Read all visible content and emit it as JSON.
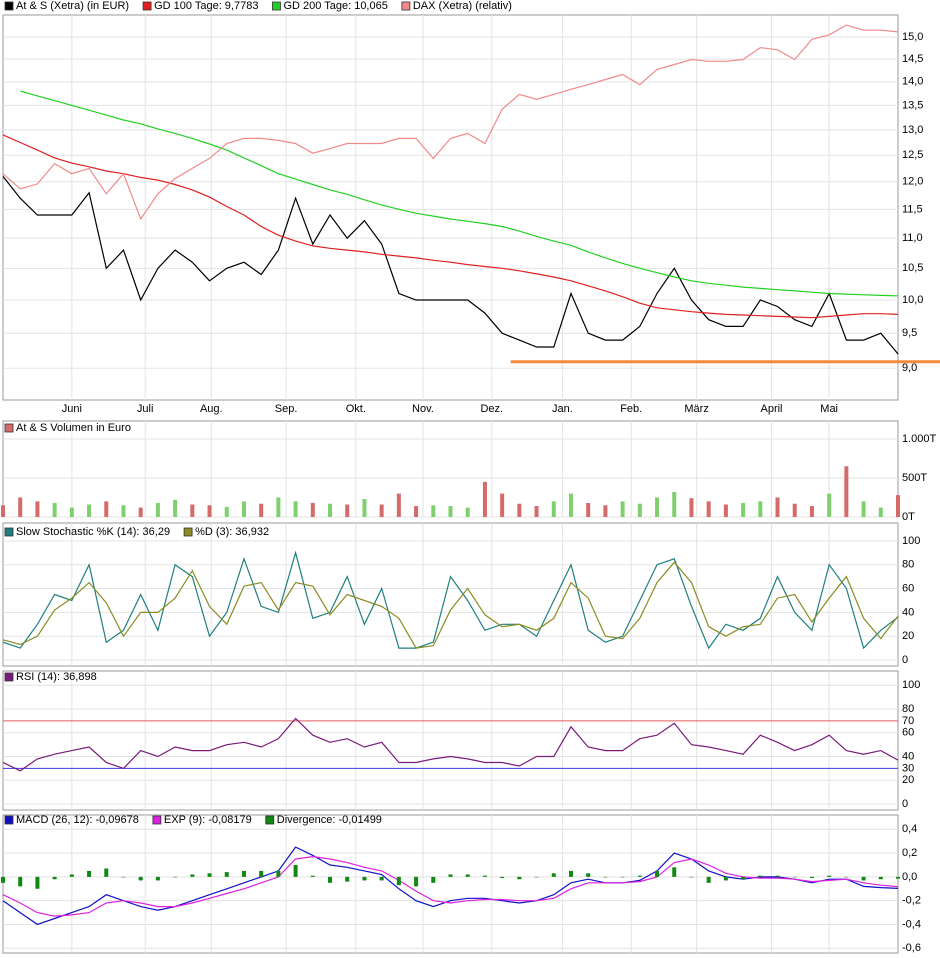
{
  "chart_data": [
    {
      "type": "line",
      "log": true,
      "grid": true,
      "xlim": [
        0,
        52
      ],
      "xticks": [
        {
          "value": 4.0,
          "label": "Juni"
        },
        {
          "value": 8.26,
          "label": "Juli"
        },
        {
          "value": 12.1,
          "label": "Aug."
        },
        {
          "value": 16.45,
          "label": "Sep."
        },
        {
          "value": 20.5,
          "label": "Okt."
        },
        {
          "value": 24.4,
          "label": "Nov."
        },
        {
          "value": 28.4,
          "label": "Dez."
        },
        {
          "value": 32.5,
          "label": "Jan."
        },
        {
          "value": 36.5,
          "label": "Feb."
        },
        {
          "value": 40.3,
          "label": "März"
        },
        {
          "value": 44.65,
          "label": "April"
        },
        {
          "value": 48.0,
          "label": "Mai"
        }
      ],
      "ylim": [
        8.57,
        15.52
      ],
      "yticks": [
        {
          "value": 9,
          "label": "9,0"
        },
        {
          "value": 9.5,
          "label": "9,5"
        },
        {
          "value": 10,
          "label": "10,0"
        },
        {
          "value": 10.5,
          "label": "10,5"
        },
        {
          "value": 11,
          "label": "11,0"
        },
        {
          "value": 11.5,
          "label": "11,5"
        },
        {
          "value": 12,
          "label": "12,0"
        },
        {
          "value": 12.5,
          "label": "12,5"
        },
        {
          "value": 13,
          "label": "13,0"
        },
        {
          "value": 13.5,
          "label": "13,5"
        },
        {
          "value": 14,
          "label": "14,0"
        },
        {
          "value": 14.5,
          "label": "14,5"
        },
        {
          "value": 15,
          "label": "15,0"
        }
      ],
      "hlines": [
        {
          "value": 9.09,
          "color": "#f28a3c",
          "x_from": 29.5
        }
      ],
      "series": [
        {
          "name": "At & S (Xetra) (in EUR)",
          "color": "#000000",
          "values": [
            12.1,
            11.7,
            11.4,
            11.4,
            11.4,
            11.8,
            10.5,
            10.8,
            10.0,
            10.5,
            10.8,
            10.6,
            10.3,
            10.5,
            10.6,
            10.4,
            10.8,
            11.7,
            10.9,
            11.4,
            11.0,
            11.3,
            10.9,
            10.1,
            10.0,
            10.0,
            10.0,
            10.0,
            9.8,
            9.5,
            9.4,
            9.3,
            9.3,
            10.1,
            9.5,
            9.4,
            9.4,
            9.6,
            10.1,
            10.5,
            10.0,
            9.7,
            9.6,
            9.6,
            10.0,
            9.9,
            9.7,
            9.6,
            10.1,
            9.4,
            9.4,
            9.5,
            9.2
          ]
        },
        {
          "name": "GD 100 Tage: 9,7783",
          "color": "#e02020",
          "values": [
            12.9,
            12.75,
            12.6,
            12.45,
            12.35,
            12.28,
            12.2,
            12.15,
            12.08,
            12.03,
            11.95,
            11.85,
            11.72,
            11.55,
            11.4,
            11.2,
            11.05,
            10.95,
            10.87,
            10.83,
            10.8,
            10.77,
            10.73,
            10.7,
            10.67,
            10.63,
            10.6,
            10.56,
            10.53,
            10.5,
            10.46,
            10.41,
            10.36,
            10.3,
            10.22,
            10.14,
            10.05,
            9.95,
            9.88,
            9.85,
            9.82,
            9.8,
            9.78,
            9.77,
            9.76,
            9.75,
            9.74,
            9.73,
            9.75,
            9.77,
            9.79,
            9.79,
            9.78
          ]
        },
        {
          "name": "GD 200 Tage: 10,065",
          "color": "#22d022",
          "values": [
            null,
            13.8,
            13.7,
            13.6,
            13.5,
            13.4,
            13.3,
            13.2,
            13.12,
            13.02,
            12.93,
            12.83,
            12.72,
            12.6,
            12.45,
            12.3,
            12.15,
            12.05,
            11.95,
            11.85,
            11.77,
            11.67,
            11.58,
            11.5,
            11.43,
            11.38,
            11.33,
            11.29,
            11.25,
            11.2,
            11.12,
            11.03,
            10.95,
            10.88,
            10.77,
            10.67,
            10.58,
            10.5,
            10.43,
            10.36,
            10.3,
            10.26,
            10.23,
            10.2,
            10.18,
            10.16,
            10.14,
            10.12,
            10.1,
            10.09,
            10.08,
            10.07,
            10.065
          ]
        },
        {
          "name": "DAX (Xetra) (relativ)",
          "color": "#f08a8a",
          "values": [
            12.15,
            11.87,
            11.96,
            12.34,
            12.15,
            12.25,
            11.78,
            12.15,
            11.33,
            11.78,
            12.06,
            12.25,
            12.44,
            12.73,
            12.83,
            12.83,
            12.79,
            12.73,
            12.54,
            12.63,
            12.73,
            12.73,
            12.73,
            12.83,
            12.83,
            12.44,
            12.83,
            12.93,
            12.73,
            13.42,
            13.73,
            13.63,
            13.73,
            13.84,
            13.94,
            14.05,
            14.16,
            13.94,
            14.27,
            14.38,
            14.49,
            14.45,
            14.45,
            14.49,
            14.76,
            14.71,
            14.49,
            14.95,
            15.05,
            15.28,
            15.16,
            15.16,
            15.12
          ]
        }
      ]
    },
    {
      "type": "bar",
      "grid": true,
      "up_color": "#7fcf6f",
      "down_color": "#d46a6a",
      "ylim": [
        0,
        1230
      ],
      "yticks": [
        {
          "value": 0,
          "label": "0T"
        },
        {
          "value": 500,
          "label": "500T"
        },
        {
          "value": 1000,
          "label": "1.000T"
        }
      ],
      "series": [
        {
          "name": "At & S Volumen in Euro",
          "color": "#d46a6a",
          "values": [
            150,
            250,
            200,
            180,
            120,
            160,
            200,
            150,
            120,
            180,
            220,
            160,
            150,
            130,
            200,
            170,
            250,
            200,
            180,
            170,
            160,
            230,
            160,
            300,
            140,
            150,
            140,
            120,
            450,
            300,
            170,
            140,
            200,
            300,
            180,
            150,
            200,
            170,
            250,
            320,
            240,
            200,
            160,
            180,
            200,
            250,
            170,
            140,
            300,
            650,
            200,
            120,
            280
          ]
        }
      ]
    },
    {
      "type": "line",
      "grid": true,
      "ylim": [
        -5,
        115
      ],
      "yticks": [
        0,
        20,
        40,
        60,
        80,
        100
      ],
      "series": [
        {
          "name": "Slow Stochastic %K (14): 36,29",
          "color": "#1f7f7f",
          "values": [
            15,
            10,
            30,
            55,
            50,
            80,
            15,
            25,
            55,
            25,
            80,
            70,
            20,
            40,
            85,
            45,
            40,
            90,
            35,
            40,
            70,
            30,
            60,
            10,
            10,
            15,
            70,
            50,
            25,
            30,
            30,
            20,
            50,
            80,
            25,
            15,
            20,
            50,
            80,
            85,
            45,
            10,
            30,
            25,
            35,
            70,
            40,
            25,
            80,
            60,
            10,
            25,
            36
          ]
        },
        {
          "name": "%D (3): 36,932",
          "color": "#8c8c22",
          "values": [
            17,
            13,
            20,
            42,
            52,
            65,
            48,
            20,
            40,
            40,
            52,
            75,
            45,
            30,
            62,
            65,
            42,
            65,
            62,
            38,
            55,
            50,
            45,
            35,
            10,
            12,
            42,
            60,
            38,
            28,
            30,
            25,
            35,
            65,
            52,
            20,
            18,
            35,
            65,
            82,
            65,
            28,
            20,
            28,
            30,
            52,
            55,
            32,
            52,
            70,
            35,
            18,
            37
          ]
        }
      ]
    },
    {
      "type": "line",
      "grid": true,
      "ylim": [
        -5,
        112
      ],
      "yticks": [
        0,
        20,
        30,
        40,
        60,
        70,
        80,
        100
      ],
      "hlines": [
        {
          "value": 70,
          "color": "#e05a5a"
        },
        {
          "value": 30,
          "color": "#3a3ae0"
        }
      ],
      "series": [
        {
          "name": "RSI (14): 36,898",
          "color": "#7a1a7a",
          "values": [
            35,
            28,
            38,
            42,
            45,
            48,
            35,
            30,
            45,
            40,
            48,
            45,
            45,
            50,
            52,
            48,
            55,
            72,
            58,
            52,
            55,
            48,
            52,
            35,
            35,
            38,
            40,
            38,
            35,
            35,
            32,
            40,
            40,
            65,
            48,
            45,
            45,
            55,
            58,
            68,
            50,
            48,
            45,
            42,
            58,
            52,
            45,
            50,
            58,
            45,
            42,
            45,
            37
          ]
        }
      ]
    },
    {
      "type": "line",
      "grid": true,
      "ylim": [
        -0.64,
        0.52
      ],
      "yticks": [
        {
          "value": -0.6,
          "label": "-0,6"
        },
        {
          "value": -0.4,
          "label": "-0,4"
        },
        {
          "value": -0.2,
          "label": "-0,2"
        },
        {
          "value": 0,
          "label": "0,0"
        },
        {
          "value": 0.2,
          "label": "0,2"
        },
        {
          "value": 0.4,
          "label": "0,4"
        }
      ],
      "series": [
        {
          "name": "MACD (26, 12): -0,09678",
          "color": "#1010c8",
          "values": [
            -0.2,
            -0.3,
            -0.4,
            -0.35,
            -0.3,
            -0.25,
            -0.15,
            -0.2,
            -0.25,
            -0.28,
            -0.25,
            -0.2,
            -0.15,
            -0.1,
            -0.05,
            0,
            0.05,
            0.25,
            0.18,
            0.1,
            0.08,
            0.05,
            0.02,
            -0.1,
            -0.2,
            -0.25,
            -0.2,
            -0.18,
            -0.18,
            -0.2,
            -0.22,
            -0.2,
            -0.15,
            -0.05,
            -0.02,
            -0.05,
            -0.05,
            -0.03,
            0.05,
            0.2,
            0.15,
            0.05,
            0,
            -0.02,
            0,
            0,
            -0.02,
            -0.05,
            -0.02,
            -0.02,
            -0.08,
            -0.09,
            -0.097
          ]
        },
        {
          "name": "EXP (9): -0,08179",
          "color": "#e020e0",
          "values": [
            -0.15,
            -0.22,
            -0.3,
            -0.33,
            -0.32,
            -0.3,
            -0.22,
            -0.2,
            -0.22,
            -0.25,
            -0.25,
            -0.22,
            -0.18,
            -0.14,
            -0.1,
            -0.05,
            0,
            0.15,
            0.17,
            0.15,
            0.12,
            0.08,
            0.05,
            -0.03,
            -0.12,
            -0.2,
            -0.22,
            -0.2,
            -0.19,
            -0.19,
            -0.2,
            -0.2,
            -0.18,
            -0.1,
            -0.05,
            -0.05,
            -0.05,
            -0.04,
            0,
            0.12,
            0.15,
            0.1,
            0.03,
            0,
            -0.01,
            -0.01,
            -0.02,
            -0.04,
            -0.03,
            -0.02,
            -0.05,
            -0.07,
            -0.082
          ]
        },
        {
          "name": "Divergence: -0,01499",
          "color": "#118811",
          "type": "bar",
          "values": [
            -0.05,
            -0.08,
            -0.1,
            -0.02,
            0.02,
            0.05,
            0.07,
            0,
            -0.03,
            -0.03,
            0,
            0.02,
            0.03,
            0.04,
            0.05,
            0.05,
            0.05,
            0.1,
            0.01,
            -0.05,
            -0.04,
            -0.03,
            -0.03,
            -0.07,
            -0.08,
            -0.05,
            0.02,
            0.02,
            0.01,
            -0.01,
            -0.02,
            0,
            0.03,
            0.05,
            0.03,
            0,
            0,
            0.01,
            0.05,
            0.08,
            0,
            -0.05,
            -0.03,
            -0.02,
            0.01,
            0.01,
            0,
            -0.01,
            0.01,
            0,
            -0.03,
            -0.02,
            -0.015
          ]
        }
      ]
    }
  ]
}
